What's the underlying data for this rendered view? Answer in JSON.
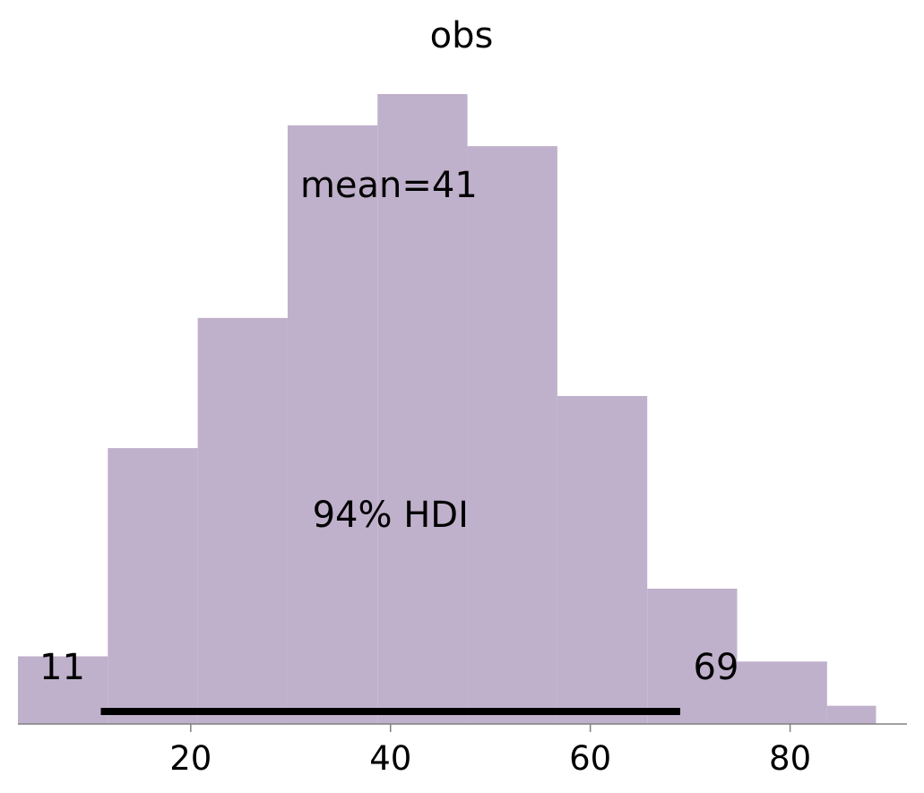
{
  "chart_data": {
    "type": "bar",
    "title": "obs",
    "xlabel": "",
    "ylabel": "",
    "bin_edges": [
      2.7,
      11.7,
      20.7,
      29.7,
      38.7,
      47.7,
      56.7,
      65.7,
      74.7,
      83.7,
      88.6
    ],
    "values": [
      13,
      53,
      78,
      115,
      121,
      111,
      63,
      26,
      12,
      3.5
    ],
    "xlim": [
      2.7,
      91.7
    ],
    "ylim": [
      0,
      130
    ],
    "xticks": [
      20,
      40,
      60,
      80
    ],
    "bar_color": "#bfb0cb",
    "grid": false,
    "mean": {
      "value": 41,
      "label": "mean=41"
    },
    "hdi": {
      "label": "94% HDI",
      "low": 11,
      "high": 69,
      "low_label": "11",
      "high_label": "69"
    }
  }
}
